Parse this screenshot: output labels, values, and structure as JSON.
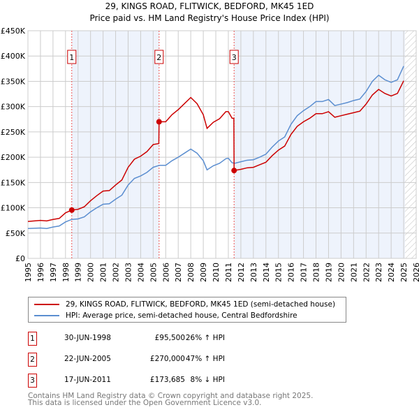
{
  "chart_data": {
    "type": "line",
    "title": "29, KINGS ROAD, FLITWICK, BEDFORD, MK45 1ED",
    "subtitle": "Price paid vs. HM Land Registry's House Price Index (HPI)",
    "xlim": [
      1995,
      2026
    ],
    "ylim": [
      0,
      450000
    ],
    "xticks": [
      "1995",
      "1996",
      "1997",
      "1998",
      "1999",
      "2000",
      "2001",
      "2002",
      "2003",
      "2004",
      "2005",
      "2006",
      "2007",
      "2008",
      "2009",
      "2010",
      "2011",
      "2012",
      "2013",
      "2014",
      "2015",
      "2016",
      "2017",
      "2018",
      "2019",
      "2020",
      "2021",
      "2022",
      "2023",
      "2024",
      "2025",
      "2026"
    ],
    "yticks": [
      {
        "v": 0,
        "l": "£0"
      },
      {
        "v": 50000,
        "l": "£50K"
      },
      {
        "v": 100000,
        "l": "£100K"
      },
      {
        "v": 150000,
        "l": "£150K"
      },
      {
        "v": 200000,
        "l": "£200K"
      },
      {
        "v": 250000,
        "l": "£250K"
      },
      {
        "v": 300000,
        "l": "£300K"
      },
      {
        "v": 350000,
        "l": "£350K"
      },
      {
        "v": 400000,
        "l": "£400K"
      },
      {
        "v": 450000,
        "l": "£450K"
      }
    ],
    "grid": true,
    "shaded_ranges": [
      [
        1998.5,
        2005.47
      ],
      [
        2011.46,
        2025.1
      ]
    ],
    "forecast_from": 2025.1,
    "series": [
      {
        "name": "29, KINGS ROAD, FLITWICK, BEDFORD, MK45 1ED (semi-detached house)",
        "color": "#cc0000",
        "x": [
          1995,
          1996,
          1996.5,
          1997,
          1997.5,
          1998,
          1998.5,
          1999,
          1999.5,
          2000,
          2000.5,
          2001,
          2001.5,
          2002,
          2002.5,
          2003,
          2003.5,
          2004,
          2004.5,
          2005,
          2005.45,
          2005.47,
          2006,
          2006.5,
          2007,
          2007.5,
          2008,
          2008.5,
          2009,
          2009.3,
          2009.8,
          2010.3,
          2010.8,
          2011,
          2011.3,
          2011.44,
          2011.46,
          2012,
          2012.5,
          2013,
          2013.5,
          2014,
          2014.5,
          2015,
          2015.5,
          2016,
          2016.5,
          2017,
          2017.5,
          2018,
          2018.5,
          2019,
          2019.5,
          2020,
          2020.5,
          2021,
          2021.5,
          2022,
          2022.5,
          2023,
          2023.5,
          2024,
          2024.5,
          2025
        ],
        "y": [
          73,
          75,
          74,
          77,
          79,
          90,
          95.5,
          97,
          102,
          114,
          124,
          133,
          134,
          145,
          155,
          180,
          196,
          202,
          211,
          225,
          227,
          270,
          270,
          284,
          294,
          306,
          318,
          306,
          284,
          257,
          269,
          276,
          290,
          290,
          277,
          277,
          173.7,
          176,
          179,
          180,
          185,
          190,
          203,
          214,
          222,
          245,
          261,
          270,
          277,
          286,
          286,
          290,
          279,
          282,
          285,
          288,
          291,
          305,
          323,
          334,
          326,
          321,
          326,
          351
        ]
      },
      {
        "name": "HPI: Average price, semi-detached house, Central Bedfordshire",
        "color": "#5b8ed0",
        "x": [
          1995,
          1996,
          1996.5,
          1997,
          1997.5,
          1998,
          1998.5,
          1999,
          1999.5,
          2000,
          2000.5,
          2001,
          2001.5,
          2002,
          2002.5,
          2003,
          2003.5,
          2004,
          2004.5,
          2005,
          2005.5,
          2006,
          2006.5,
          2007,
          2007.5,
          2008,
          2008.5,
          2009,
          2009.3,
          2009.8,
          2010.3,
          2010.8,
          2011,
          2011.3,
          2011.5,
          2012,
          2012.5,
          2013,
          2013.5,
          2014,
          2014.5,
          2015,
          2015.5,
          2016,
          2016.5,
          2017,
          2017.5,
          2018,
          2018.5,
          2019,
          2019.5,
          2020,
          2020.5,
          2021,
          2021.5,
          2022,
          2022.5,
          2023,
          2023.5,
          2024,
          2024.5,
          2025
        ],
        "y": [
          59,
          60,
          59,
          62,
          64,
          72,
          77,
          78,
          82,
          92,
          100,
          107,
          108,
          117,
          125,
          145,
          158,
          163,
          170,
          180,
          184,
          184,
          193,
          200,
          208,
          216,
          208,
          193,
          175,
          183,
          188,
          197,
          198,
          189,
          188,
          191,
          194,
          195,
          200,
          206,
          220,
          232,
          240,
          265,
          282,
          292,
          300,
          310,
          310,
          314,
          302,
          305,
          308,
          312,
          315,
          330,
          350,
          362,
          353,
          348,
          353,
          380
        ]
      }
    ],
    "sales": [
      {
        "n": "1",
        "x": 1998.5,
        "price": 95500,
        "date": "30-JUN-1998",
        "price_label": "£95,500",
        "hpi": "26% ↑ HPI"
      },
      {
        "n": "2",
        "x": 2005.47,
        "price": 270000,
        "date": "22-JUN-2005",
        "price_label": "£270,000",
        "hpi": "47% ↑ HPI"
      },
      {
        "n": "3",
        "x": 2011.46,
        "price": 173685,
        "date": "17-JUN-2011",
        "price_label": "£173,685",
        "hpi": "8% ↓ HPI"
      }
    ]
  },
  "legend": {
    "red": "29, KINGS ROAD, FLITWICK, BEDFORD, MK45 1ED (semi-detached house)",
    "blue": "HPI: Average price, semi-detached house, Central Bedfordshire"
  },
  "footer": {
    "line1": "Contains HM Land Registry data © Crown copyright and database right 2025.",
    "line2": "This data is licensed under the Open Government Licence v3.0."
  }
}
